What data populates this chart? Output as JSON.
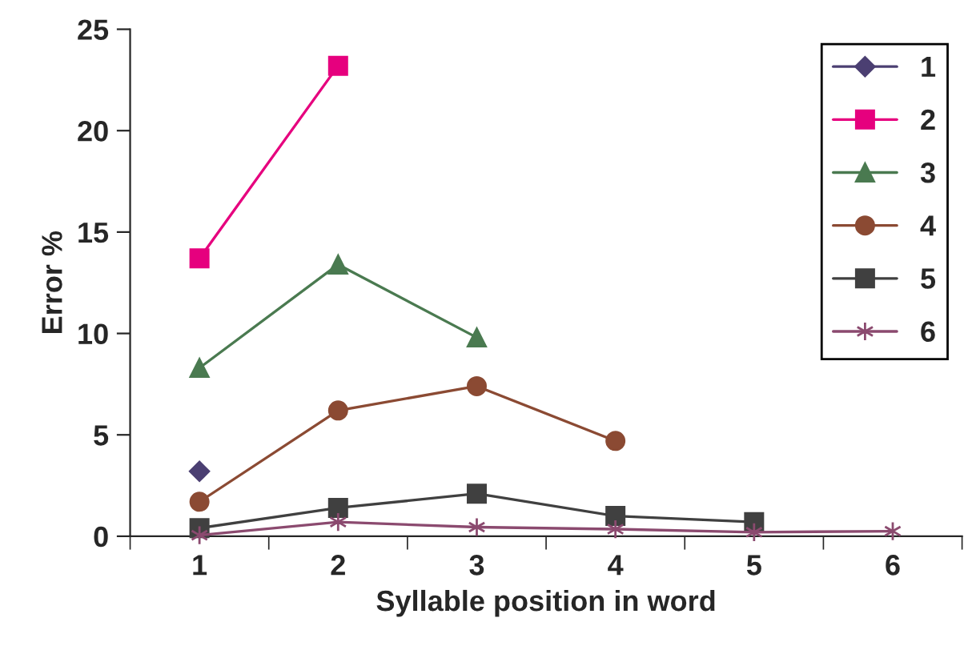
{
  "chart_data": {
    "type": "line",
    "xlabel": "Syllable position in word",
    "ylabel": "Error %",
    "categories": [
      "1",
      "2",
      "3",
      "4",
      "5",
      "6"
    ],
    "series": [
      {
        "name": "1",
        "color": "#4b3f72",
        "marker": "diamond",
        "values": [
          3.2,
          null,
          null,
          null,
          null,
          null
        ]
      },
      {
        "name": "2",
        "color": "#e6007e",
        "marker": "square",
        "values": [
          13.7,
          23.2,
          null,
          null,
          null,
          null
        ]
      },
      {
        "name": "3",
        "color": "#4a7a50",
        "marker": "triangle",
        "values": [
          8.3,
          13.4,
          9.8,
          null,
          null,
          null
        ]
      },
      {
        "name": "4",
        "color": "#8b4a33",
        "marker": "circle",
        "values": [
          1.7,
          6.2,
          7.4,
          4.7,
          null,
          null
        ]
      },
      {
        "name": "5",
        "color": "#404040",
        "marker": "square",
        "values": [
          0.4,
          1.4,
          2.1,
          1.0,
          0.7,
          null
        ]
      },
      {
        "name": "6",
        "color": "#8b4a6f",
        "marker": "cross",
        "values": [
          0.05,
          0.7,
          0.45,
          0.35,
          0.2,
          0.25
        ]
      }
    ],
    "ylim": [
      0,
      25
    ],
    "yticks": [
      0,
      5,
      10,
      15,
      20,
      25
    ],
    "grid": false,
    "legend": "right"
  }
}
